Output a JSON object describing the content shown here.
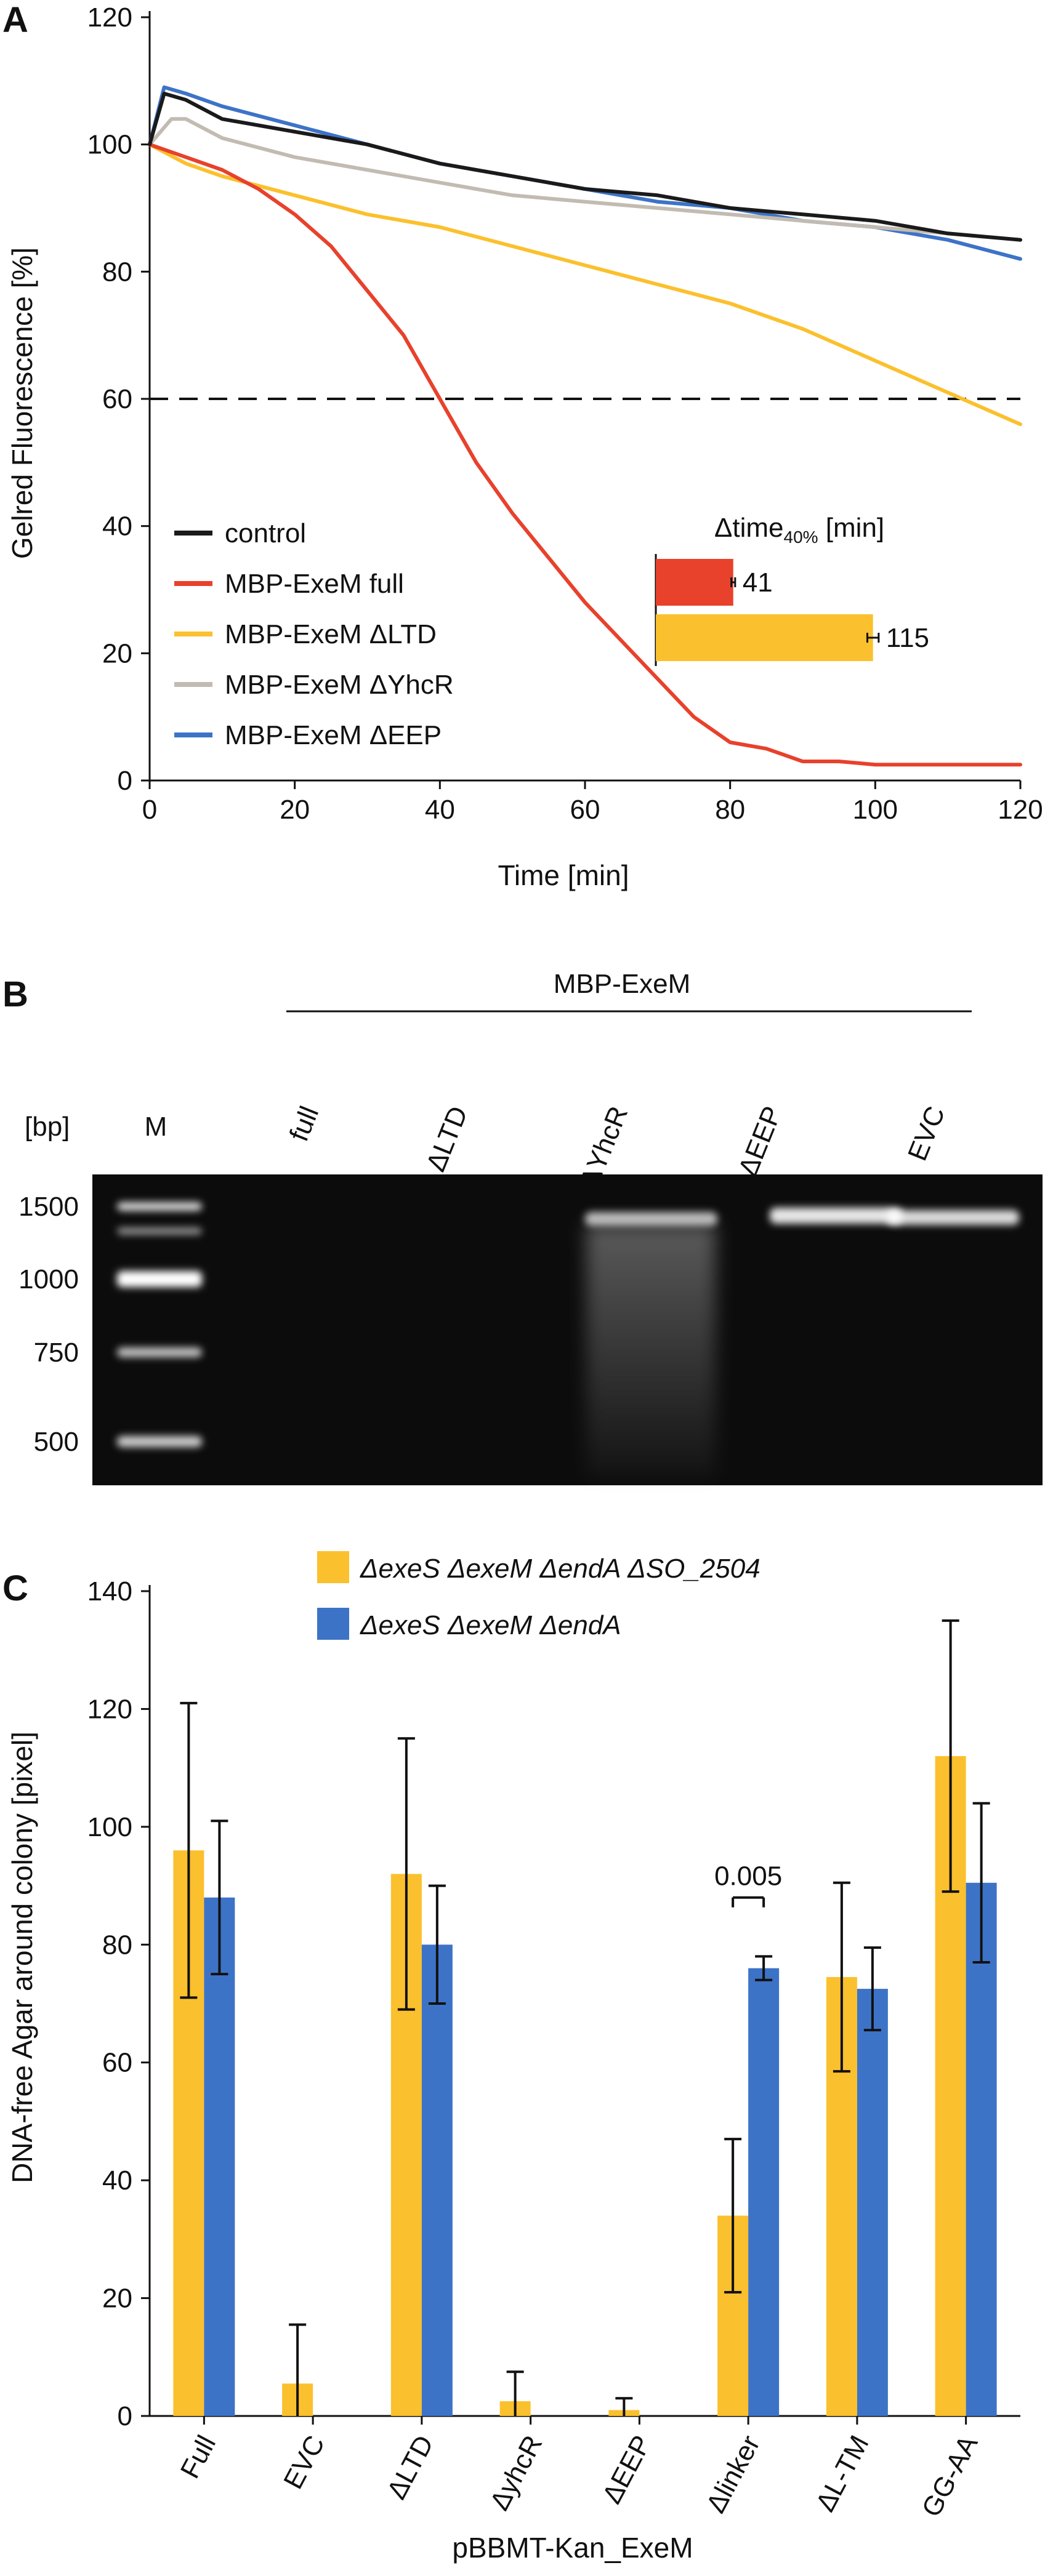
{
  "panels": {
    "A": {
      "letter": "A"
    },
    "B": {
      "letter": "B"
    },
    "C": {
      "letter": "C"
    }
  },
  "chart_data": [
    {
      "type": "line",
      "panel": "A",
      "title": "",
      "xlabel": "Time [min]",
      "ylabel": "Gelred Fluorescence [%]",
      "xlim": [
        0,
        120
      ],
      "ylim": [
        0,
        120
      ],
      "xticks": [
        "0",
        "20",
        "40",
        "60",
        "80",
        "100",
        "120"
      ],
      "yticks": [
        "0",
        "20",
        "40",
        "60",
        "80",
        "100",
        "120"
      ],
      "threshold": {
        "y": 60,
        "style": "dashed"
      },
      "legend_position": "bottom-left",
      "series": [
        {
          "name": "control",
          "color": "#1a1a1a",
          "x": [
            0,
            2,
            5,
            10,
            20,
            30,
            40,
            50,
            60,
            70,
            80,
            90,
            100,
            110,
            120
          ],
          "y": [
            100,
            108,
            107,
            104,
            102,
            100,
            97,
            95,
            93,
            92,
            90,
            89,
            88,
            86,
            85
          ]
        },
        {
          "name": "MBP-ExeM full",
          "color": "#e8412c",
          "x": [
            0,
            5,
            10,
            15,
            20,
            25,
            30,
            35,
            40,
            45,
            50,
            55,
            60,
            65,
            70,
            75,
            80,
            85,
            90,
            95,
            100,
            110,
            120
          ],
          "y": [
            100,
            98,
            96,
            93,
            89,
            84,
            77,
            70,
            60,
            50,
            42,
            35,
            28,
            22,
            16,
            10,
            6,
            5,
            3,
            3,
            2.5,
            2.5,
            2.5
          ]
        },
        {
          "name": "MBP-ExeM ΔLTD",
          "color": "#fbc02d",
          "x": [
            0,
            5,
            10,
            20,
            30,
            40,
            50,
            60,
            70,
            80,
            90,
            100,
            110,
            120
          ],
          "y": [
            100,
            97,
            95,
            92,
            89,
            87,
            84,
            81,
            78,
            75,
            71,
            66,
            61,
            56
          ]
        },
        {
          "name": "MBP-ExeM ΔYhcR",
          "color": "#c2bbb1",
          "x": [
            0,
            3,
            5,
            10,
            20,
            30,
            40,
            50,
            60,
            70,
            80,
            90,
            100,
            110,
            120
          ],
          "y": [
            100,
            104,
            104,
            101,
            98,
            96,
            94,
            92,
            91,
            90,
            89,
            88,
            87,
            86,
            85
          ]
        },
        {
          "name": "MBP-ExeM ΔEEP",
          "color": "#3d73c7",
          "x": [
            0,
            2,
            5,
            10,
            20,
            30,
            40,
            50,
            60,
            70,
            80,
            90,
            100,
            110,
            120
          ],
          "y": [
            100,
            109,
            108,
            106,
            103,
            100,
            97,
            95,
            93,
            91,
            90,
            88,
            87,
            85,
            82
          ]
        }
      ]
    },
    {
      "type": "bar",
      "panel": "A-inset",
      "title_main": "Δtime",
      "title_sub": "40%",
      "title_unit": " [min]",
      "orientation": "horizontal",
      "categories": [
        "MBP-ExeM full",
        "MBP-ExeM ΔLTD"
      ],
      "values": [
        41,
        115
      ],
      "value_labels": [
        "41",
        "115"
      ],
      "errors": [
        1,
        3
      ],
      "colors": [
        "#e8412c",
        "#fbc02d"
      ],
      "xlim": [
        0,
        150
      ]
    },
    {
      "type": "bar",
      "panel": "C",
      "title": "",
      "xlabel": "pBBMT-Kan_ExeM",
      "ylabel": "DNA-free Agar around colony [pixel]",
      "ylim": [
        0,
        140
      ],
      "yticks": [
        "0",
        "20",
        "40",
        "60",
        "80",
        "100",
        "120",
        "140"
      ],
      "categories": [
        "Full",
        "EVC",
        "ΔLTD",
        "ΔyhcR",
        "ΔEEP",
        "Δlinker",
        "ΔL-TM",
        "GG-AA"
      ],
      "legend_position": "top-center",
      "annotation": {
        "text": "0.005",
        "category": "Δlinker"
      },
      "series": [
        {
          "name": "ΔexeS ΔexeM ΔendA ΔSO_2504",
          "color": "#fbc02d",
          "values": [
            96,
            5.5,
            92,
            2.5,
            1,
            34,
            74.5,
            112
          ],
          "errors": [
            25,
            10,
            23,
            5,
            2,
            13,
            16,
            23
          ]
        },
        {
          "name": "ΔexeS ΔexeM ΔendA",
          "color": "#3d73c7",
          "values": [
            88,
            0,
            80,
            0,
            0,
            76,
            72.5,
            90.5
          ],
          "errors": [
            13,
            0,
            10,
            0,
            0,
            2,
            7,
            13.5
          ]
        }
      ]
    }
  ],
  "gel": {
    "group_label": "MBP-ExeM",
    "bp_header": "[bp]",
    "marker_label": "M",
    "bp_labels": [
      "1500",
      "1000",
      "750",
      "500"
    ],
    "lane_labels": [
      "full",
      "ΔLTD",
      "ΔYhcR",
      "ΔEEP",
      "EVC"
    ]
  }
}
